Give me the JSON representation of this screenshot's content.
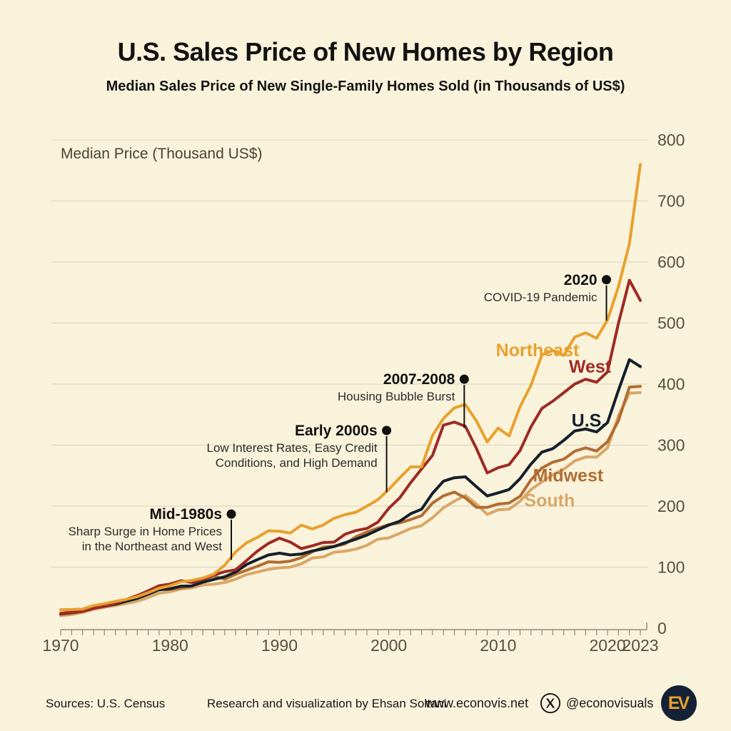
{
  "header": {},
  "chart_data": {
    "type": "line",
    "title": "U.S. Sales Price of New Homes by Region",
    "subtitle": "Median Sales Price of New Single-Family Homes Sold (in Thousands of US$)",
    "ylabel": "Median Price (Thousand US$)",
    "xlabel": "",
    "xlim": [
      1970,
      2023
    ],
    "ylim": [
      0,
      800
    ],
    "grid": "horizontal",
    "legend_position": "inline-labels",
    "y_ticks": [
      0,
      100,
      200,
      300,
      400,
      500,
      600,
      700,
      800
    ],
    "x_tick_years": [
      1970,
      1980,
      1990,
      2000,
      2010,
      2020,
      2023
    ],
    "x_tick_labels": [
      "1970",
      "1980",
      "1990",
      "2000",
      "2010",
      "2020",
      "2023"
    ],
    "years": [
      1970,
      1971,
      1972,
      1973,
      1974,
      1975,
      1976,
      1977,
      1978,
      1979,
      1980,
      1981,
      1982,
      1983,
      1984,
      1985,
      1986,
      1987,
      1988,
      1989,
      1990,
      1991,
      1992,
      1993,
      1994,
      1995,
      1996,
      1997,
      1998,
      1999,
      2000,
      2001,
      2002,
      2003,
      2004,
      2005,
      2006,
      2007,
      2008,
      2009,
      2010,
      2011,
      2012,
      2013,
      2014,
      2015,
      2016,
      2017,
      2018,
      2019,
      2020,
      2021,
      2022,
      2023
    ],
    "series": [
      {
        "name": "South",
        "color": "#D9A768",
        "label_anchor": {
          "year": 2014.7,
          "value": 210
        },
        "values": [
          20.3,
          22.5,
          25.8,
          30.9,
          34.5,
          37.3,
          40.5,
          44.1,
          50.3,
          57.3,
          59.6,
          64.4,
          66.1,
          70.9,
          72,
          75,
          80.2,
          88,
          92,
          96.4,
          99,
          100,
          105.5,
          115,
          116.9,
          124.5,
          126.2,
          129.6,
          135.8,
          145.9,
          148,
          155.4,
          163.4,
          168.1,
          181.1,
          197.3,
          208.2,
          217.7,
          203.7,
          186.4,
          194,
          195,
          208,
          227.4,
          239.6,
          251.6,
          260.5,
          274.2,
          280.6,
          280.3,
          295.5,
          348,
          385,
          386
        ]
      },
      {
        "name": "Midwest",
        "color": "#B26D31",
        "label_anchor": {
          "year": 2016.4,
          "value": 251
        },
        "values": [
          24.4,
          27.2,
          29.3,
          32.9,
          36.1,
          39.6,
          44.8,
          51.5,
          59.2,
          63.9,
          63.4,
          65.9,
          68.9,
          79.5,
          85.4,
          80.3,
          88.3,
          95,
          101.6,
          108.8,
          107.9,
          110,
          115.6,
          125,
          132.9,
          134,
          138,
          149.9,
          157.5,
          164,
          169.7,
          172.6,
          178,
          184.3,
          205,
          216.9,
          223,
          213.5,
          198.1,
          198,
          203.4,
          205.1,
          216,
          243,
          262.4,
          272,
          277,
          290,
          295.4,
          290.3,
          305.4,
          340.4,
          395,
          396.3
        ]
      },
      {
        "name": "U.S.",
        "color": "#141F2C",
        "label_anchor": {
          "year": 2018.3,
          "value": 341
        },
        "values": [
          23.4,
          25.2,
          27.6,
          32.5,
          35.9,
          39.3,
          44.2,
          48.8,
          55.7,
          62.9,
          64.6,
          68.9,
          69.3,
          75.3,
          79.9,
          84.3,
          92,
          104.5,
          112.5,
          120,
          122.9,
          120,
          121.5,
          126.5,
          130,
          133.9,
          140,
          146,
          152.5,
          161,
          169,
          175.2,
          187.6,
          195,
          221,
          240.9,
          246.5,
          247.9,
          232.1,
          216.7,
          221.8,
          227.2,
          245.2,
          268.9,
          288.5,
          294.2,
          307.8,
          323.1,
          326.4,
          321.5,
          336.9,
          390,
          440,
          428.6
        ]
      },
      {
        "name": "West",
        "color": "#9E2A25",
        "label_anchor": {
          "year": 2018.4,
          "value": 429
        },
        "values": [
          24,
          25.5,
          27.5,
          32.4,
          35.8,
          40.6,
          47.2,
          53.5,
          61.3,
          69.6,
          72.3,
          77.8,
          75,
          80.1,
          87.3,
          92.6,
          95.7,
          111,
          126.5,
          139,
          147.5,
          141.1,
          130.4,
          135,
          140.4,
          141,
          153.9,
          160,
          163.5,
          173.7,
          196.4,
          213.6,
          238.5,
          260.9,
          283.1,
          332.6,
          337.7,
          330.9,
          294.8,
          254.4,
          262.9,
          268,
          291,
          330,
          360,
          372,
          386,
          400,
          408,
          403,
          420,
          500,
          570,
          537
        ]
      },
      {
        "name": "Northeast",
        "color": "#E8A12E",
        "label_anchor": {
          "year": 2013.6,
          "value": 456
        },
        "values": [
          30.3,
          30.6,
          31.4,
          37.1,
          40.1,
          44,
          47.3,
          51.6,
          58.1,
          65.5,
          69.5,
          76,
          78.2,
          82.2,
          88.6,
          103.3,
          125,
          140,
          149,
          159.6,
          159,
          155.9,
          169,
          162.6,
          169,
          180,
          186,
          190,
          200,
          210.5,
          227.4,
          246.4,
          264.3,
          264.5,
          315.8,
          343.8,
          361,
          366.4,
          340,
          305,
          328,
          315,
          363,
          398.1,
          448,
          455,
          447,
          477,
          484,
          475,
          505,
          560,
          630,
          760
        ]
      }
    ],
    "annotations": [
      {
        "title": "Mid-1980s",
        "lines": [
          "Sharp Surge in Home Prices",
          "in the Northeast and West"
        ],
        "year": 1985.6,
        "label_value": 187,
        "pointer_value": 112
      },
      {
        "title": "Early 2000s",
        "lines": [
          "Low Interest Rates, Easy Credit",
          "Conditions, and High Demand"
        ],
        "year": 1999.8,
        "label_value": 324,
        "pointer_value": 223
      },
      {
        "title": "2007-2008",
        "lines": [
          "Housing Bubble Burst"
        ],
        "year": 2006.9,
        "label_value": 408,
        "pointer_value": 328
      },
      {
        "title": "2020",
        "lines": [
          "COVID-19 Pandemic"
        ],
        "year": 2019.9,
        "label_value": 571,
        "pointer_value": 504
      }
    ],
    "colors": {
      "background": "#FAF3DC",
      "grid": "#DDD7C2",
      "axis": "#8F897B",
      "tick_text": "#55503F",
      "annotation": "#111111"
    }
  },
  "footer": {
    "sources": "Sources: U.S. Census",
    "credit": "Research and visualization by Ehsan Soltani",
    "website": "www.econovis.net",
    "social_handle": "@econovisuals",
    "logo_text": "EV"
  }
}
